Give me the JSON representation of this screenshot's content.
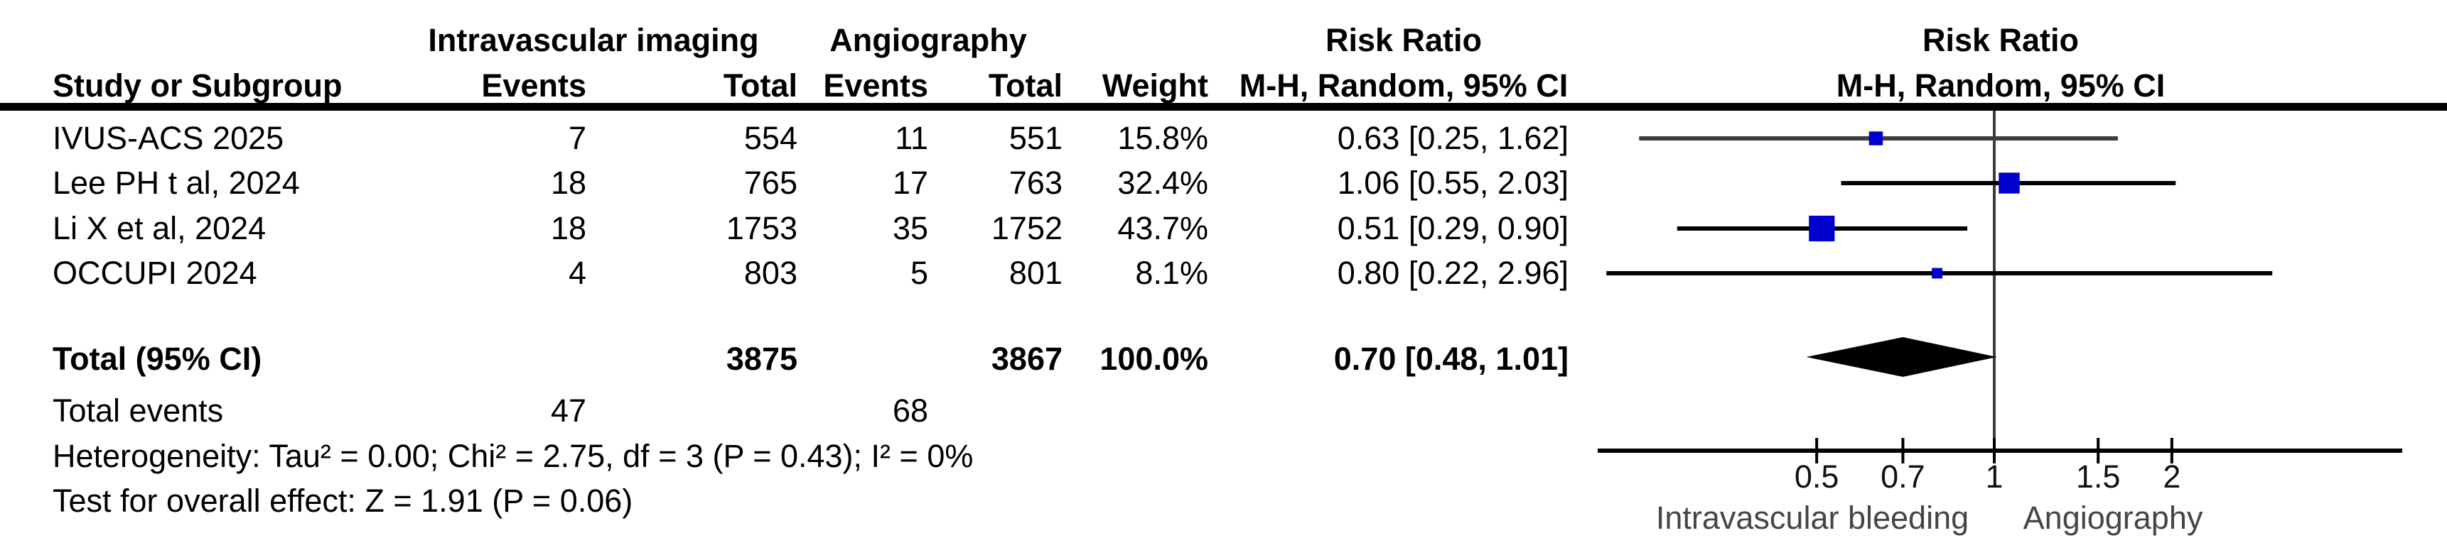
{
  "header": {
    "group_experimental": "Intravascular imaging",
    "group_control": "Angiography",
    "effect_col_title": "Risk Ratio",
    "effect_col_subtitle": "M-H, Random, 95% CI",
    "plot_title": "Risk Ratio",
    "plot_subtitle": "M-H, Random, 95% CI",
    "study_col": "Study or Subgroup",
    "events_col_experimental": "Events",
    "total_col_experimental": "Total",
    "events_col_control": "Events",
    "total_col_control": "Total",
    "weight_col": "Weight"
  },
  "table": {
    "rows": [
      {
        "study": "IVUS-ACS 2025",
        "iv_events": "7",
        "iv_total": "554",
        "ang_events": "11",
        "ang_total": "551",
        "weight": "15.8%",
        "rr_ci": "0.63 [0.25, 1.62]"
      },
      {
        "study": "Lee PH t al, 2024",
        "iv_events": "18",
        "iv_total": "765",
        "ang_events": "17",
        "ang_total": "763",
        "weight": "32.4%",
        "rr_ci": "1.06 [0.55, 2.03]"
      },
      {
        "study": "Li X et al, 2024",
        "iv_events": "18",
        "iv_total": "1753",
        "ang_events": "35",
        "ang_total": "1752",
        "weight": "43.7%",
        "rr_ci": "0.51 [0.29, 0.90]"
      },
      {
        "study": "OCCUPI 2024",
        "iv_events": "4",
        "iv_total": "803",
        "ang_events": "5",
        "ang_total": "801",
        "weight": "8.1%",
        "rr_ci": "0.80 [0.22, 2.96]"
      }
    ],
    "total": {
      "label": "Total (95% CI)",
      "iv_total": "3875",
      "ang_total": "3867",
      "weight": "100.0%",
      "rr_ci": "0.70 [0.48, 1.01]"
    },
    "total_events": {
      "label": "Total events",
      "iv": "47",
      "ang": "68"
    },
    "heterogeneity": "Heterogeneity: Tau² = 0.00; Chi² = 2.75, df = 3 (P = 0.43); I² = 0%",
    "overall_effect": "Test for overall effect: Z = 1.91 (P = 0.06)"
  },
  "chart_data": {
    "type": "forest",
    "effect_measure": "Risk Ratio",
    "method": "M-H, Random, 95% CI",
    "x_scale": "log",
    "axis_ticks": [
      0.5,
      0.7,
      1,
      1.5,
      2
    ],
    "axis_tick_labels": [
      "0.5",
      "0.7",
      "1",
      "1.5",
      "2"
    ],
    "axis_range": [
      0.21,
      4.9
    ],
    "no_effect_value": 1,
    "favours_left": "Intravascular bleeding",
    "favours_right": "Angiography",
    "studies": [
      {
        "name": "IVUS-ACS 2025",
        "rr": 0.63,
        "ci_low": 0.25,
        "ci_high": 1.62,
        "weight_pct": 15.8
      },
      {
        "name": "Lee PH t al, 2024",
        "rr": 1.06,
        "ci_low": 0.55,
        "ci_high": 2.03,
        "weight_pct": 32.4
      },
      {
        "name": "Li X et al, 2024",
        "rr": 0.51,
        "ci_low": 0.29,
        "ci_high": 0.9,
        "weight_pct": 43.7
      },
      {
        "name": "OCCUPI 2024",
        "rr": 0.8,
        "ci_low": 0.22,
        "ci_high": 2.96,
        "weight_pct": 8.1
      }
    ],
    "total": {
      "label": "Total (95% CI)",
      "rr": 0.7,
      "ci_low": 0.48,
      "ci_high": 1.01,
      "weight_pct": 100.0
    },
    "colors": {
      "square": "#0000CC",
      "diamond": "#000000",
      "ci_line": "#000000",
      "first_row_line": "#3E3E3E",
      "no_effect_line": "#3E3E3E",
      "axis": "#000000",
      "header_rule": "#000000",
      "footer_text": "#454545"
    }
  }
}
